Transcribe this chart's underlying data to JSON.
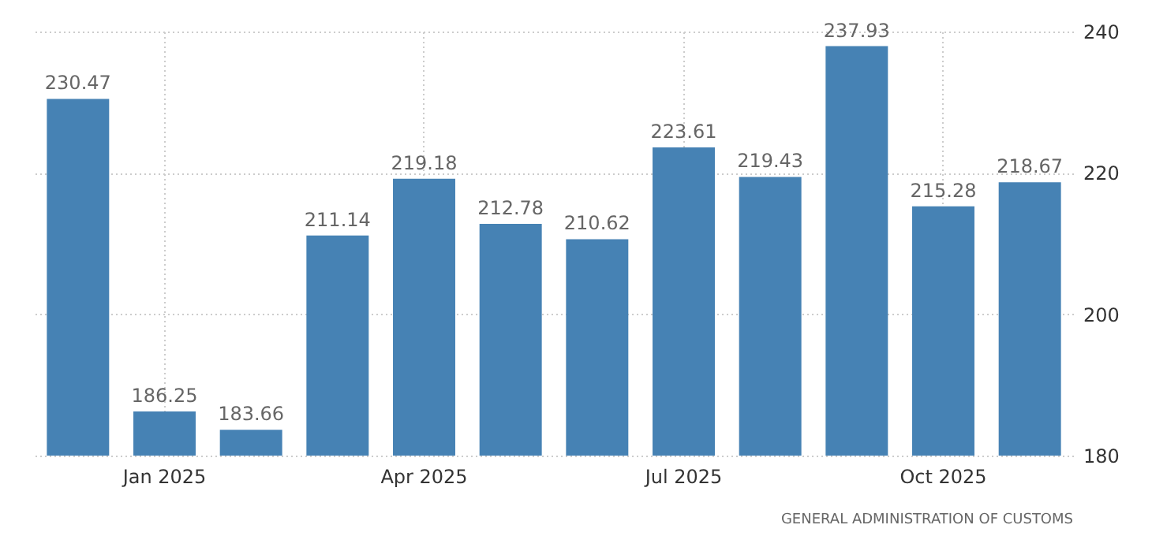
{
  "chart_data": {
    "type": "bar",
    "categories": [
      null,
      "Jan 2025",
      null,
      null,
      "Apr 2025",
      null,
      null,
      "Jul 2025",
      null,
      null,
      "Oct 2025",
      null
    ],
    "values": [
      230.47,
      186.25,
      183.66,
      211.14,
      219.18,
      212.78,
      210.62,
      223.61,
      219.43,
      237.93,
      215.28,
      218.67
    ],
    "color": "#4682b4",
    "ylim": [
      180,
      240
    ],
    "yticks": [
      180,
      200,
      220,
      240
    ],
    "grid": true,
    "data_labels": true,
    "annotations": [
      "GENERAL ADMINISTRATION OF CUSTOMS"
    ]
  }
}
